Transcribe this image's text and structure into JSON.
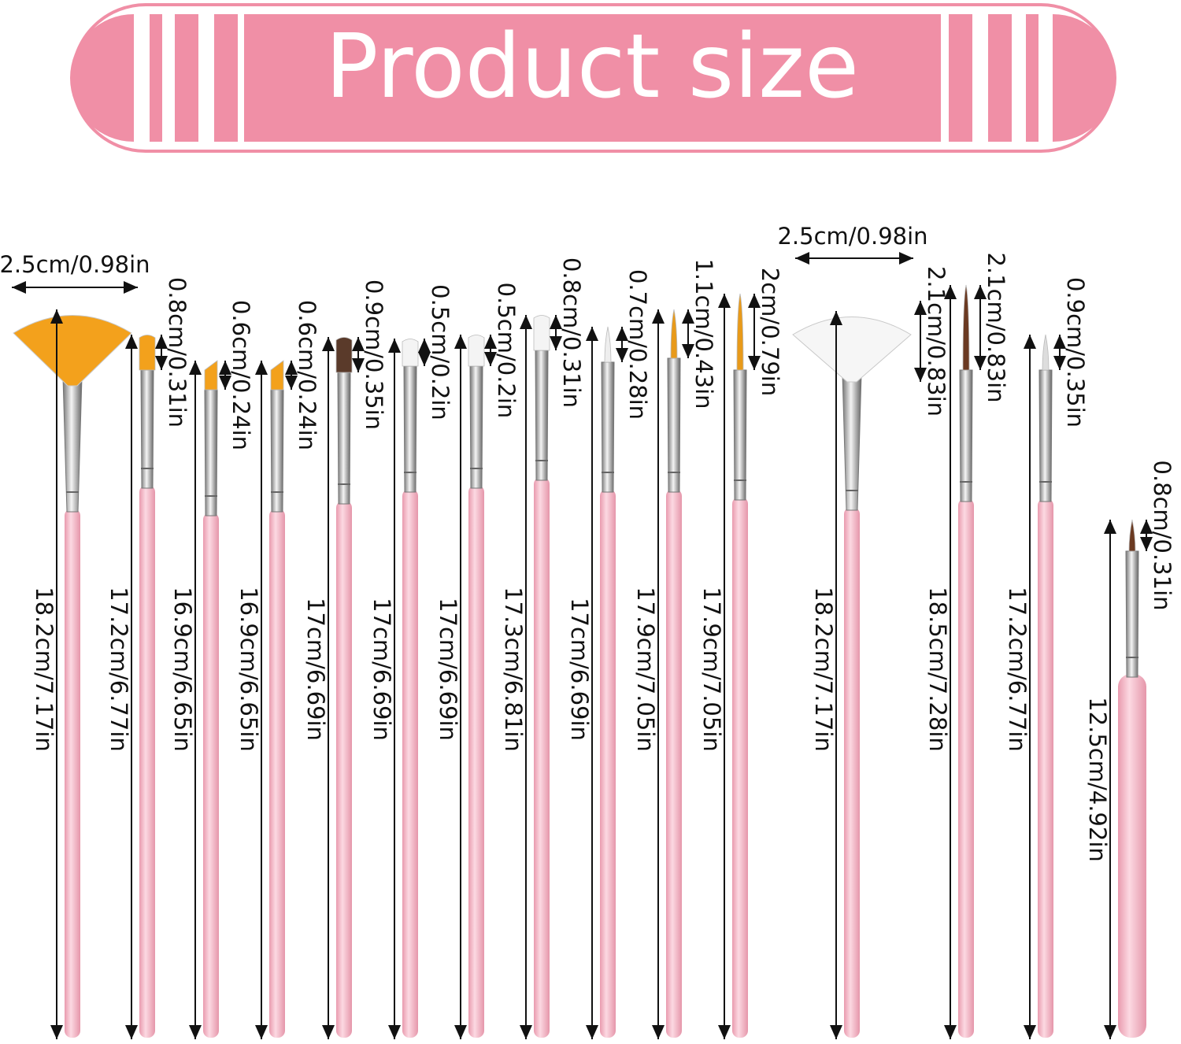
{
  "header": {
    "title": "Product size"
  },
  "brushes": [
    {
      "type": "fan",
      "color": "#f3a11c",
      "width": "2.5cm/0.98in",
      "length": "18.2cm/7.17in"
    },
    {
      "type": "flat",
      "color": "#f3a11c",
      "heads": [
        "0.8cm/0.31in"
      ],
      "length": "17.2cm/6.77in"
    },
    {
      "type": "angle",
      "color": "#f3a11c",
      "heads": [
        "0.6cm/0.24in"
      ],
      "length": "16.9cm/6.65in"
    },
    {
      "type": "angle",
      "color": "#f3a11c",
      "heads": [
        "0.6cm/0.24in"
      ],
      "length": "16.9cm/6.65in"
    },
    {
      "type": "flat",
      "color": "#5a3a2a",
      "heads": [
        "0.9cm/0.35in"
      ],
      "length": "17cm/6.69in"
    },
    {
      "type": "flat",
      "color": "#f4f4f4",
      "heads": [
        "0.5cm/0.2in"
      ],
      "length": "17cm/6.69in"
    },
    {
      "type": "flat",
      "color": "#f4f4f4",
      "heads": [
        "0.5cm/0.2in"
      ],
      "length": "17cm/6.69in"
    },
    {
      "type": "flat",
      "color": "#f4f4f4",
      "heads": [
        "0.8cm/0.31in"
      ],
      "length": "17.3cm/6.81in"
    },
    {
      "type": "liner",
      "color": "#eeeeee",
      "heads": [
        "0.7cm/0.28in"
      ],
      "length": "17cm/6.69in"
    },
    {
      "type": "liner",
      "color": "#e89a1a",
      "heads": [
        "1.1cm/0.43in"
      ],
      "length": "17.9cm/7.05in"
    },
    {
      "type": "liner",
      "color": "#e89a1a",
      "heads": [
        "2cm/0.79in"
      ],
      "length": "17.9cm/7.05in"
    },
    {
      "type": "fan",
      "color": "#f6f6f6",
      "width": "2.5cm/0.98in",
      "length": "18.2cm/7.17in"
    },
    {
      "type": "liner",
      "color": "#6b3a22",
      "heads": [
        "2.1cm/0.83in",
        "2.1cm/0.83in"
      ],
      "length": "18.5cm/7.28in"
    },
    {
      "type": "liner",
      "color": "#dddddd",
      "heads": [
        "0.9cm/0.35in"
      ],
      "length": "17.2cm/6.77in"
    },
    {
      "type": "dot",
      "color": "#6b3a22",
      "heads": [
        "0.8cm/0.31in"
      ],
      "length": "12.5cm/4.92in"
    }
  ]
}
